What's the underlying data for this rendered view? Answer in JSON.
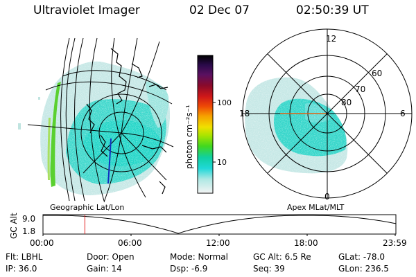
{
  "header": {
    "title": "Ultraviolet Imager",
    "date": "02 Dec 07",
    "time": "02:50:39 UT"
  },
  "left_map": {
    "label": "Geographic Lat/Lon"
  },
  "right_map": {
    "label": "Apex MLat/MLT",
    "mlt_labels": [
      "12",
      "18",
      "6",
      "0"
    ],
    "lat_labels": [
      "60",
      "70",
      "80"
    ]
  },
  "colorbar": {
    "label": "photon cm⁻²s⁻¹",
    "ticks": [
      "100",
      "10"
    ],
    "colors": [
      "#000000",
      "#1a0a3a",
      "#5a1060",
      "#8a0a2a",
      "#c01010",
      "#e82a0a",
      "#f06a00",
      "#f8a800",
      "#f0e000",
      "#bce800",
      "#60e010",
      "#10d090",
      "#10d8d0",
      "#90e8e0",
      "#e0e8e8",
      "#ffffff"
    ]
  },
  "alt_plot": {
    "ylabel": "GC Alt",
    "yticks": [
      "9.0",
      "1.8"
    ],
    "xticks": [
      "00:00",
      "06:00",
      "12:00",
      "18:00",
      "23:59"
    ],
    "current_time_hours": 2.85,
    "marker_color": "#e02020"
  },
  "info": {
    "flt": "Flt: LBHL",
    "ip": "IP: 36.0",
    "door": "Door: Open",
    "gain": "Gain: 14",
    "mode": "Mode: Normal",
    "dsp": "Dsp:    -6.9",
    "gcalt": "GC Alt: 6.5 Re",
    "seq": "Seq: 39",
    "glat": "GLat: -78.0",
    "glon": "GLon: 236.5"
  }
}
